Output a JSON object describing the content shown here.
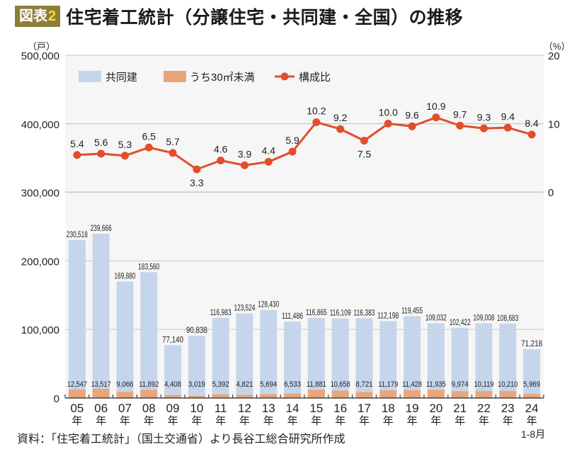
{
  "header": {
    "badge_label": "図表",
    "badge_number": "2",
    "title": "住宅着工統計（分譲住宅・共同建・全国）の推移"
  },
  "footer": {
    "source": "資料：「住宅着工統計」（国土交通省）より長谷工総合研究所作成"
  },
  "colors": {
    "bar_total": "#c5d6ec",
    "bar_small": "#eba57a",
    "line": "#e24e2b",
    "plot_bg": "#f6f6f6",
    "grid": "#c8c8c8",
    "badge": "#8c7d3a",
    "badge_number": "#f5e02a"
  },
  "chart_data": {
    "type": "bar+line",
    "title": "住宅着工統計（分譲住宅・共同建・全国）の推移",
    "categories": [
      "05",
      "06",
      "07",
      "08",
      "09",
      "10",
      "11",
      "12",
      "13",
      "14",
      "15",
      "16",
      "17",
      "18",
      "19",
      "20",
      "21",
      "22",
      "23",
      "24"
    ],
    "category_suffix": "年",
    "last_category_note": "1-8月",
    "left_axis": {
      "unit": "（戸）",
      "ylim": [
        0,
        500000
      ],
      "ticks": [
        0,
        100000,
        200000,
        300000,
        400000,
        500000
      ],
      "tick_labels": [
        "0",
        "100,000",
        "200,000",
        "300,000",
        "400,000",
        "500,000"
      ]
    },
    "right_axis": {
      "unit": "（%）",
      "ylim": [
        0,
        20
      ],
      "ticks": [
        0,
        10,
        20
      ],
      "tick_labels": [
        "0",
        "10",
        "20"
      ]
    },
    "grid": true,
    "legend_position": "top-left",
    "series": [
      {
        "name": "共同建",
        "type": "bar",
        "axis": "left",
        "values": [
          230518,
          239666,
          169880,
          183560,
          77140,
          90838,
          116983,
          123524,
          128430,
          111486,
          116865,
          116109,
          116383,
          112198,
          119455,
          109032,
          102422,
          109008,
          108683,
          71218
        ],
        "labels": [
          "230,518",
          "239,666",
          "169,880",
          "183,560",
          "77,140",
          "90,838",
          "116,983",
          "123,524",
          "128,430",
          "111,486",
          "116,865",
          "116,109",
          "116,383",
          "112,198",
          "119,455",
          "109,032",
          "102,422",
          "109,008",
          "108,683",
          "71,218"
        ]
      },
      {
        "name": "うち30㎡未満",
        "type": "bar",
        "axis": "left",
        "values": [
          12547,
          13517,
          9066,
          11892,
          4408,
          3019,
          5392,
          4821,
          5694,
          6533,
          11881,
          10658,
          8721,
          11179,
          11428,
          11935,
          9974,
          10119,
          10210,
          5969
        ],
        "labels": [
          "12,547",
          "13,517",
          "9,066",
          "11,892",
          "4,408",
          "3,019",
          "5,392",
          "4,821",
          "5,694",
          "6,533",
          "11,881",
          "10,658",
          "8,721",
          "11,179",
          "11,428",
          "11,935",
          "9,974",
          "10,119",
          "10,210",
          "5,969"
        ]
      },
      {
        "name": "構成比",
        "type": "line",
        "axis": "right",
        "values": [
          5.4,
          5.6,
          5.3,
          6.5,
          5.7,
          3.3,
          4.6,
          3.9,
          4.4,
          5.9,
          10.2,
          9.2,
          7.5,
          10.0,
          9.6,
          10.9,
          9.7,
          9.3,
          9.4,
          8.4
        ],
        "labels": [
          "5.4",
          "5.6",
          "5.3",
          "6.5",
          "5.7",
          "3.3",
          "4.6",
          "3.9",
          "4.4",
          "5.9",
          "10.2",
          "9.2",
          "7.5",
          "10.0",
          "9.6",
          "10.9",
          "9.7",
          "9.3",
          "9.4",
          "8.4"
        ]
      }
    ]
  }
}
